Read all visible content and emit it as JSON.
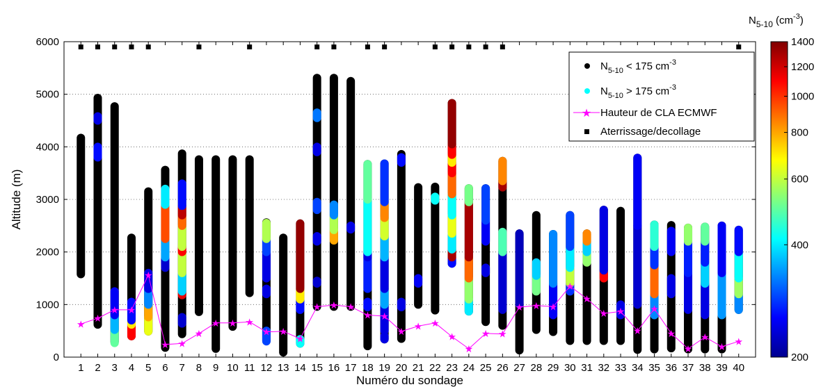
{
  "chart_data": {
    "type": "scatter",
    "xlabel": "Numéro du sondage",
    "ylabel": "Altitude (m)",
    "xlim": [
      0,
      41
    ],
    "ylim": [
      0,
      6000
    ],
    "x_ticks": [
      "1",
      "2",
      "3",
      "4",
      "5",
      "6",
      "7",
      "8",
      "9",
      "10",
      "11",
      "12",
      "13",
      "14",
      "15",
      "16",
      "17",
      "18",
      "19",
      "20",
      "21",
      "22",
      "23",
      "24",
      "25",
      "26",
      "27",
      "28",
      "29",
      "30",
      "31",
      "32",
      "33",
      "34",
      "35",
      "36",
      "37",
      "38",
      "39",
      "40"
    ],
    "y_ticks": [
      "0",
      "1000",
      "2000",
      "3000",
      "4000",
      "5000",
      "6000"
    ],
    "grid": "horizontal-dotted",
    "colorbar": {
      "title_main": "N",
      "title_sub": "5-10",
      "title_unit": " (cm",
      "title_sup": "-3",
      "title_close": ")",
      "ticks": [
        "200",
        "400",
        "600",
        "800",
        "1000",
        "1200",
        "1400"
      ],
      "range": [
        200,
        1400
      ],
      "scale": "log"
    },
    "legend": {
      "position": "top-right",
      "entries": [
        {
          "pre": "N",
          "sub": "5-10",
          "mid": " < 175 cm",
          "sup": "-3",
          "marker": "black-dot",
          "color": "#000000"
        },
        {
          "pre": "N",
          "sub": "5-10",
          "mid": " > 175 cm",
          "sup": "-3",
          "marker": "cyan-dot",
          "color": "#00ffff"
        },
        {
          "pre": "Hauteur de CLA ECMWF",
          "sub": "",
          "mid": "",
          "sup": "",
          "marker": "magenta-star-line",
          "color": "#ff00ff"
        },
        {
          "pre": "Aterrissage/decollage",
          "sub": "",
          "mid": "",
          "sup": "",
          "marker": "black-square",
          "color": "#000000"
        }
      ]
    },
    "soundings": [
      {
        "x": 1,
        "bottom": 1580,
        "top": 4170,
        "colored": []
      },
      {
        "x": 2,
        "bottom": 620,
        "top": 4930,
        "colored": [
          [
            3800,
            4000,
            260
          ],
          [
            4500,
            4580,
            240
          ]
        ]
      },
      {
        "x": 3,
        "bottom": 290,
        "top": 4770,
        "colored": [
          [
            270,
            520,
            500
          ],
          [
            520,
            800,
            360
          ],
          [
            800,
            1250,
            250
          ]
        ]
      },
      {
        "x": 4,
        "bottom": 400,
        "top": 2270,
        "colored": [
          [
            400,
            620,
            1100
          ],
          [
            620,
            700,
            700
          ],
          [
            700,
            1050,
            260
          ]
        ]
      },
      {
        "x": 5,
        "bottom": 490,
        "top": 3150,
        "colored": [
          [
            490,
            760,
            650
          ],
          [
            760,
            1000,
            800
          ],
          [
            1000,
            1300,
            330
          ],
          [
            1300,
            1600,
            240
          ]
        ]
      },
      {
        "x": 6,
        "bottom": 180,
        "top": 3560,
        "colored": [
          [
            1700,
            1900,
            230
          ],
          [
            1900,
            2250,
            350
          ],
          [
            2250,
            2900,
            950
          ],
          [
            2900,
            3200,
            400
          ]
        ]
      },
      {
        "x": 7,
        "bottom": 440,
        "top": 3870,
        "colored": [
          [
            640,
            760,
            230
          ],
          [
            1180,
            1250,
            1150
          ],
          [
            1250,
            1600,
            380
          ],
          [
            1600,
            2000,
            600
          ],
          [
            2000,
            2100,
            1100
          ],
          [
            2100,
            2500,
            600
          ],
          [
            2500,
            2700,
            900
          ],
          [
            2700,
            2880,
            1250
          ],
          [
            2880,
            3300,
            260
          ]
        ]
      },
      {
        "x": 8,
        "bottom": 860,
        "top": 3760,
        "colored": []
      },
      {
        "x": 9,
        "bottom": 160,
        "top": 3760,
        "colored": []
      },
      {
        "x": 10,
        "bottom": 580,
        "top": 3760,
        "colored": []
      },
      {
        "x": 11,
        "bottom": 1220,
        "top": 3760,
        "colored": []
      },
      {
        "x": 12,
        "bottom": 310,
        "top": 2560,
        "colored": [
          [
            300,
            500,
            290
          ],
          [
            1200,
            1300,
            240
          ],
          [
            1500,
            2000,
            240
          ],
          [
            2000,
            2250,
            290
          ],
          [
            2250,
            2550,
            580
          ]
        ]
      },
      {
        "x": 13,
        "bottom": 90,
        "top": 2270,
        "colored": []
      },
      {
        "x": 14,
        "bottom": 260,
        "top": 2540,
        "colored": [
          [
            260,
            340,
            420
          ],
          [
            900,
            1100,
            260
          ],
          [
            1100,
            1300,
            700
          ],
          [
            1300,
            2540,
            1350
          ]
        ]
      },
      {
        "x": 15,
        "bottom": 960,
        "top": 5310,
        "colored": [
          [
            1400,
            1450,
            230
          ],
          [
            2200,
            2300,
            240
          ],
          [
            2800,
            2950,
            290
          ],
          [
            3900,
            4000,
            240
          ],
          [
            4550,
            4650,
            320
          ]
        ]
      },
      {
        "x": 16,
        "bottom": 960,
        "top": 5310,
        "colored": [
          [
            2220,
            2420,
            800
          ],
          [
            2420,
            2700,
            580
          ],
          [
            2700,
            2900,
            330
          ]
        ]
      },
      {
        "x": 17,
        "bottom": 960,
        "top": 5250,
        "colored": [
          [
            2430,
            2500,
            240
          ]
        ]
      },
      {
        "x": 18,
        "bottom": 210,
        "top": 3670,
        "colored": [
          [
            950,
            1050,
            260
          ],
          [
            1300,
            1900,
            270
          ],
          [
            1900,
            2000,
            240
          ],
          [
            2000,
            3000,
            420
          ],
          [
            3000,
            3670,
            500
          ]
        ]
      },
      {
        "x": 19,
        "bottom": 340,
        "top": 3680,
        "colored": [
          [
            340,
            400,
            240
          ],
          [
            500,
            1000,
            240
          ],
          [
            1000,
            1300,
            350
          ],
          [
            1300,
            1900,
            240
          ],
          [
            1900,
            2300,
            360
          ],
          [
            2300,
            2650,
            620
          ],
          [
            2650,
            2950,
            850
          ],
          [
            2950,
            3680,
            280
          ]
        ]
      },
      {
        "x": 20,
        "bottom": 350,
        "top": 3860,
        "colored": [
          [
            950,
            1050,
            240
          ],
          [
            3700,
            3800,
            260
          ]
        ]
      },
      {
        "x": 21,
        "bottom": 1000,
        "top": 3230,
        "colored": [
          [
            1400,
            1500,
            250
          ]
        ]
      },
      {
        "x": 22,
        "bottom": 890,
        "top": 3240,
        "colored": [
          [
            2980,
            3050,
            420
          ]
        ]
      },
      {
        "x": 23,
        "bottom": 1780,
        "top": 4830,
        "colored": [
          [
            1780,
            1900,
            260
          ],
          [
            1900,
            2050,
            1300
          ],
          [
            2050,
            2350,
            400
          ],
          [
            2350,
            2700,
            650
          ],
          [
            2700,
            3100,
            420
          ],
          [
            3100,
            3500,
            900
          ],
          [
            3500,
            3700,
            1100
          ],
          [
            3700,
            3850,
            700
          ],
          [
            3850,
            4050,
            1100
          ],
          [
            4050,
            4830,
            1350
          ]
        ]
      },
      {
        "x": 24,
        "bottom": 870,
        "top": 3210,
        "colored": [
          [
            870,
            1100,
            400
          ],
          [
            1100,
            1500,
            550
          ],
          [
            1500,
            1900,
            900
          ],
          [
            1900,
            2950,
            1300
          ],
          [
            2950,
            3210,
            520
          ]
        ]
      },
      {
        "x": 25,
        "bottom": 670,
        "top": 3210,
        "colored": [
          [
            1600,
            1700,
            240
          ],
          [
            2200,
            2600,
            250
          ],
          [
            2600,
            3210,
            290
          ]
        ]
      },
      {
        "x": 26,
        "bottom": 600,
        "top": 3730,
        "colored": [
          [
            900,
            2000,
            230
          ],
          [
            2000,
            2380,
            480
          ],
          [
            3230,
            3350,
            1300
          ],
          [
            3350,
            3730,
            850
          ]
        ]
      },
      {
        "x": 27,
        "bottom": 130,
        "top": 2350,
        "colored": [
          [
            1000,
            2350,
            220
          ]
        ]
      },
      {
        "x": 28,
        "bottom": 520,
        "top": 2700,
        "colored": [
          [
            1250,
            1550,
            520
          ],
          [
            1550,
            1800,
            380
          ]
        ]
      },
      {
        "x": 29,
        "bottom": 480,
        "top": 2340,
        "colored": [
          [
            800,
            1400,
            250
          ],
          [
            1400,
            2340,
            330
          ]
        ]
      },
      {
        "x": 30,
        "bottom": 310,
        "top": 2700,
        "colored": [
          [
            1250,
            1400,
            280
          ],
          [
            1400,
            1700,
            600
          ],
          [
            1700,
            2100,
            400
          ],
          [
            2100,
            2700,
            290
          ]
        ]
      },
      {
        "x": 31,
        "bottom": 310,
        "top": 2350,
        "colored": [
          [
            1800,
            2000,
            550
          ],
          [
            2000,
            2200,
            380
          ],
          [
            2200,
            2350,
            850
          ]
        ]
      },
      {
        "x": 32,
        "bottom": 310,
        "top": 2800,
        "colored": [
          [
            1500,
            1650,
            1100
          ],
          [
            1650,
            2800,
            240
          ]
        ]
      },
      {
        "x": 33,
        "bottom": 310,
        "top": 2780,
        "colored": [
          [
            800,
            1000,
            240
          ]
        ]
      },
      {
        "x": 34,
        "bottom": 140,
        "top": 3790,
        "colored": [
          [
            1000,
            2500,
            230
          ],
          [
            2500,
            3790,
            250
          ]
        ]
      },
      {
        "x": 35,
        "bottom": 150,
        "top": 2520,
        "colored": [
          [
            800,
            1200,
            330
          ],
          [
            1200,
            1750,
            900
          ],
          [
            1750,
            2100,
            280
          ],
          [
            2100,
            2520,
            450
          ]
        ]
      },
      {
        "x": 36,
        "bottom": 170,
        "top": 2510,
        "colored": [
          [
            1200,
            1500,
            240
          ],
          [
            2000,
            2400,
            250
          ]
        ]
      },
      {
        "x": 37,
        "bottom": 150,
        "top": 2460,
        "colored": [
          [
            900,
            1600,
            240
          ],
          [
            1600,
            2200,
            270
          ],
          [
            2200,
            2460,
            550
          ]
        ]
      },
      {
        "x": 38,
        "bottom": 150,
        "top": 2480,
        "colored": [
          [
            800,
            1400,
            240
          ],
          [
            1400,
            1800,
            380
          ],
          [
            1800,
            2200,
            270
          ],
          [
            2200,
            2480,
            500
          ]
        ]
      },
      {
        "x": 39,
        "bottom": 150,
        "top": 2500,
        "colored": [
          [
            800,
            1600,
            340
          ],
          [
            1600,
            2500,
            250
          ]
        ]
      },
      {
        "x": 40,
        "bottom": 900,
        "top": 2420,
        "colored": [
          [
            900,
            1200,
            330
          ],
          [
            1200,
            1500,
            560
          ],
          [
            1500,
            2000,
            420
          ],
          [
            2000,
            2420,
            260
          ]
        ]
      }
    ],
    "cla_ecmwf": [
      {
        "x": 1,
        "y": 630
      },
      {
        "x": 2,
        "y": 740
      },
      {
        "x": 3,
        "y": 900
      },
      {
        "x": 4,
        "y": 900
      },
      {
        "x": 5,
        "y": 1560
      },
      {
        "x": 6,
        "y": 240
      },
      {
        "x": 7,
        "y": 260
      },
      {
        "x": 8,
        "y": 450
      },
      {
        "x": 9,
        "y": 650
      },
      {
        "x": 10,
        "y": 650
      },
      {
        "x": 11,
        "y": 670
      },
      {
        "x": 12,
        "y": 480
      },
      {
        "x": 13,
        "y": 490
      },
      {
        "x": 14,
        "y": 350
      },
      {
        "x": 15,
        "y": 960
      },
      {
        "x": 16,
        "y": 990
      },
      {
        "x": 17,
        "y": 960
      },
      {
        "x": 18,
        "y": 800
      },
      {
        "x": 19,
        "y": 780
      },
      {
        "x": 20,
        "y": 490
      },
      {
        "x": 21,
        "y": 590
      },
      {
        "x": 22,
        "y": 650
      },
      {
        "x": 23,
        "y": 390
      },
      {
        "x": 24,
        "y": 160
      },
      {
        "x": 25,
        "y": 450
      },
      {
        "x": 26,
        "y": 440
      },
      {
        "x": 27,
        "y": 950
      },
      {
        "x": 28,
        "y": 980
      },
      {
        "x": 29,
        "y": 960
      },
      {
        "x": 30,
        "y": 1350
      },
      {
        "x": 31,
        "y": 1110
      },
      {
        "x": 32,
        "y": 830
      },
      {
        "x": 33,
        "y": 870
      },
      {
        "x": 34,
        "y": 500
      },
      {
        "x": 35,
        "y": 920
      },
      {
        "x": 36,
        "y": 450
      },
      {
        "x": 37,
        "y": 160
      },
      {
        "x": 38,
        "y": 380
      },
      {
        "x": 39,
        "y": 200
      },
      {
        "x": 40,
        "y": 300
      }
    ],
    "landing_takeoff": {
      "y": 5900,
      "x": [
        1,
        2,
        3,
        4,
        5,
        8,
        11,
        15,
        16,
        18,
        19,
        22,
        23,
        24,
        25,
        26,
        40
      ]
    }
  }
}
